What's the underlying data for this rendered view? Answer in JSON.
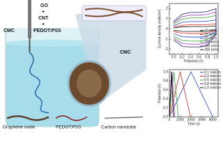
{
  "illustration": {
    "cmc_left": "CMC",
    "go": "GO",
    "plus1": "+",
    "cnt": "CNT",
    "plus2": "+",
    "pedot": "PEDOT:PSS",
    "cmc_right": "CMC",
    "legend": [
      "Graphene oxide",
      "PEDOT:PSS",
      "Carbon nanotube"
    ]
  },
  "chart_data": [
    {
      "type": "line",
      "x_label": "Potential (V)",
      "y_label": "Current density (mA/cm²)",
      "x": [
        0,
        0.2,
        0.4,
        0.6,
        0.8,
        1.0,
        1.0,
        0.8,
        0.6,
        0.4,
        0.2,
        0
      ],
      "xlim": [
        -0.1,
        1.05
      ],
      "ylim": [
        -2.5,
        2.5
      ],
      "xticks": [
        {
          "value": 0,
          "label": "0.0"
        },
        0.2,
        0.4,
        0.6,
        0.8,
        {
          "value": 1,
          "label": "1.0"
        }
      ],
      "yticks": [
        -2,
        -1,
        0,
        1,
        2
      ],
      "legend": "lower right",
      "series": [
        {
          "name": "10 mV/s",
          "color": "#000000",
          "values": [
            0.1,
            0.2,
            0.23,
            0.23,
            0.24,
            0.28,
            -0.08,
            -0.23,
            -0.25,
            -0.25,
            -0.24,
            -0.15
          ]
        },
        {
          "name": "20 mV/s",
          "color": "#e0201b",
          "values": [
            0.18,
            0.36,
            0.41,
            0.41,
            0.43,
            0.5,
            -0.14,
            -0.41,
            -0.45,
            -0.45,
            -0.43,
            -0.27
          ]
        },
        {
          "name": "50 mV/s",
          "color": "#1f3fd0",
          "values": [
            0.32,
            0.64,
            0.72,
            0.72,
            0.76,
            0.88,
            -0.24,
            -0.72,
            -0.8,
            -0.8,
            -0.76,
            -0.48
          ]
        },
        {
          "name": "100 mV/s",
          "color": "#2aa52a",
          "values": [
            0.48,
            0.96,
            1.08,
            1.08,
            1.14,
            1.32,
            -0.36,
            -1.08,
            -1.2,
            -1.2,
            -1.14,
            -0.72
          ]
        },
        {
          "name": "150 mV/s",
          "color": "#9b30b8",
          "values": [
            0.6,
            1.2,
            1.35,
            1.35,
            1.43,
            1.65,
            -0.45,
            -1.35,
            -1.5,
            -1.5,
            -1.43,
            -0.9
          ]
        },
        {
          "name": "200 mV/s",
          "color": "#1a1a6e",
          "values": [
            0.72,
            1.44,
            1.62,
            1.62,
            1.71,
            1.98,
            -0.54,
            -1.62,
            -1.8,
            -1.8,
            -1.71,
            -1.08
          ]
        }
      ]
    },
    {
      "type": "line",
      "x_label": "Time (s)",
      "y_label": "Potential (V)",
      "xlim": [
        0,
        4500
      ],
      "ylim": [
        0,
        1.05
      ],
      "xticks": [
        0,
        1000,
        2000,
        3000,
        4000
      ],
      "yticks": [
        {
          "value": 0,
          "label": "0.0"
        },
        0.2,
        0.4,
        0.6,
        0.8,
        {
          "value": 1,
          "label": "1.0"
        }
      ],
      "legend": "upper right",
      "series": [
        {
          "name": "0.1 mA/cm²",
          "color": "#1f3fd0",
          "x": [
            0,
            2000,
            4000
          ],
          "values": [
            0,
            1,
            0
          ]
        },
        {
          "name": "0.2 mA/cm²",
          "color": "#e0201b",
          "x": [
            0,
            1000,
            1950
          ],
          "values": [
            0,
            1,
            0
          ]
        },
        {
          "name": "0.5 mA/cm²",
          "color": "#2aa52a",
          "x": [
            0,
            420,
            830
          ],
          "values": [
            0,
            1,
            0
          ]
        },
        {
          "name": "0.8 mA/cm²",
          "color": "#9b30b8",
          "x": [
            0,
            250,
            500
          ],
          "values": [
            0,
            1,
            0
          ]
        },
        {
          "name": "1.0 mA/cm²",
          "color": "#000000",
          "x": [
            0,
            190,
            380
          ],
          "values": [
            0,
            1,
            0
          ]
        }
      ]
    }
  ]
}
